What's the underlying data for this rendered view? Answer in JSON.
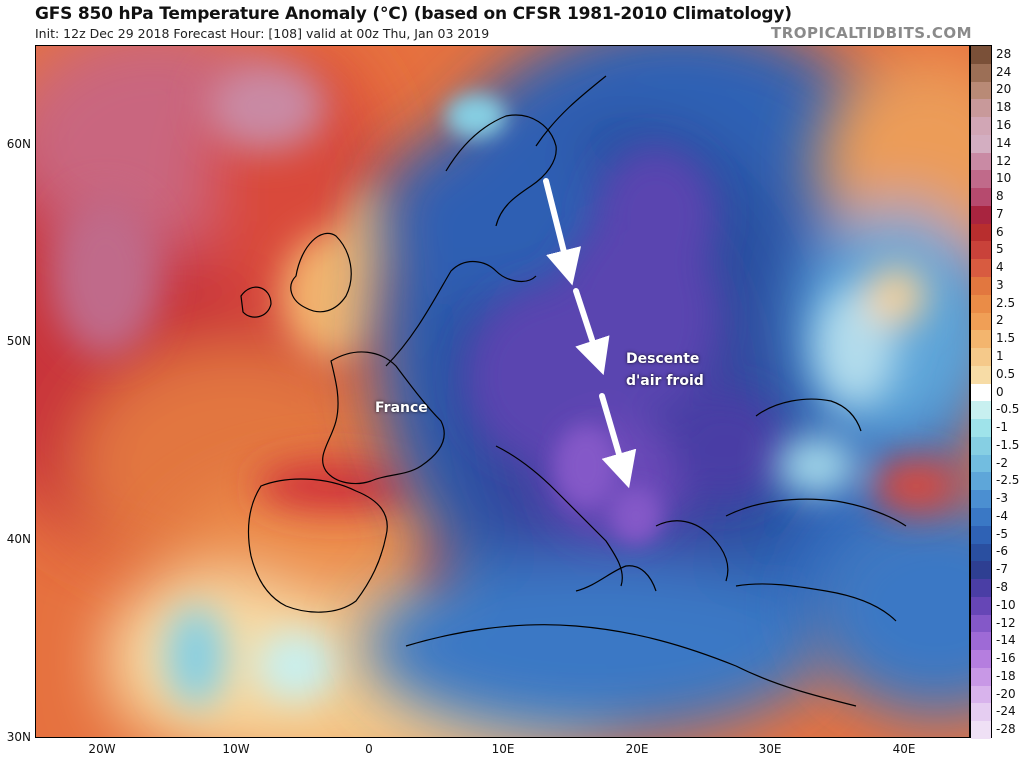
{
  "header": {
    "title": "GFS 850 hPa Temperature Anomaly (°C) (based on CFSR 1981-2010 Climatology)",
    "subtitle": "Init: 12z Dec 29 2018   Forecast Hour: [108]   valid at 00z Thu, Jan 03 2019",
    "brand": "TROPICALTIDBITS.COM"
  },
  "axes": {
    "lat_labels": [
      "60N",
      "50N",
      "40N",
      "30N"
    ],
    "lon_labels": [
      "20W",
      "10W",
      "0",
      "10E",
      "20E",
      "30E",
      "40E"
    ]
  },
  "annotations": {
    "france": "France",
    "descent_line1": "Descente",
    "descent_line2": "d'air froid"
  },
  "colorbar": {
    "labels": [
      "28",
      "24",
      "20",
      "18",
      "16",
      "14",
      "12",
      "10",
      "8",
      "7",
      "6",
      "5",
      "4",
      "3",
      "2.5",
      "2",
      "1.5",
      "1",
      "0.5",
      "0",
      "-0.5",
      "-1",
      "-1.5",
      "-2",
      "-2.5",
      "-3",
      "-4",
      "-5",
      "-6",
      "-7",
      "-8",
      "-10",
      "-12",
      "-14",
      "-16",
      "-18",
      "-20",
      "-24",
      "-28"
    ],
    "colors": [
      "#7a5038",
      "#9c6f56",
      "#b98a76",
      "#c8999a",
      "#d1a6b5",
      "#d3aec1",
      "#c98aa4",
      "#c06a8a",
      "#b64a6e",
      "#a8243f",
      "#b82e2e",
      "#c9423a",
      "#d85b40",
      "#e2773f",
      "#ea8c47",
      "#f09f56",
      "#f3b56e",
      "#f5c98a",
      "#f7dca6",
      "#ffffff",
      "#c8f0f0",
      "#9fe3ea",
      "#86cfe3",
      "#72bde0",
      "#5ea6d9",
      "#4b8fd1",
      "#3a78c5",
      "#2f62b5",
      "#2a4fa0",
      "#2e3f92",
      "#4a3ea5",
      "#6646b6",
      "#8458c8",
      "#9e6ad6",
      "#b57edf",
      "#c898e6",
      "#d8b3ec",
      "#e5cdf1",
      "#efe0f5"
    ]
  },
  "arrows_count_note": ""
}
